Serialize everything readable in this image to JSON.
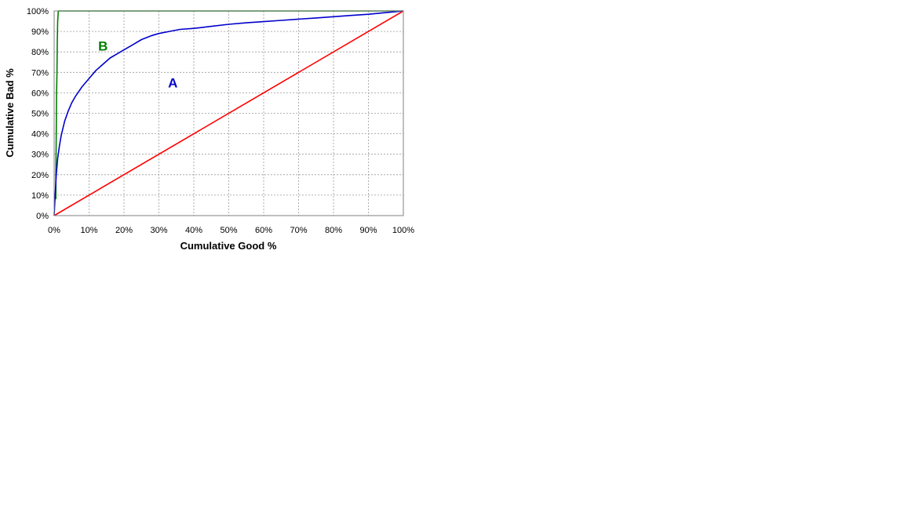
{
  "chart_data": {
    "type": "line",
    "xlabel": "Cumulative Good %",
    "ylabel": "Cumulative Bad %",
    "xlim": [
      0,
      100
    ],
    "ylim": [
      0,
      100
    ],
    "x_ticks": [
      "0%",
      "10%",
      "20%",
      "30%",
      "40%",
      "50%",
      "60%",
      "70%",
      "80%",
      "90%",
      "100%"
    ],
    "y_ticks": [
      "0%",
      "10%",
      "20%",
      "30%",
      "40%",
      "50%",
      "60%",
      "70%",
      "80%",
      "90%",
      "100%"
    ],
    "grid": true,
    "series": [
      {
        "color": "#008000",
        "x": [
          0.5,
          0.5,
          0.6,
          0.7,
          0.8,
          0.9,
          1.0,
          1.2,
          2,
          10,
          30,
          50,
          70,
          90,
          100
        ],
        "y": [
          8,
          20,
          40,
          60,
          70,
          85,
          95,
          100,
          100,
          100,
          100,
          100,
          100,
          100,
          100
        ]
      },
      {
        "color": "#0000cc",
        "x": [
          0,
          0.3,
          0.6,
          1,
          1.5,
          2,
          3,
          4,
          5,
          6,
          8,
          10,
          12,
          14,
          16,
          18,
          20,
          22,
          25,
          28,
          30,
          33,
          36,
          40,
          45,
          50,
          55,
          60,
          65,
          70,
          75,
          80,
          85,
          90,
          95,
          100
        ],
        "y": [
          0,
          10,
          20,
          28,
          34,
          39,
          46,
          51,
          55,
          58,
          63,
          67,
          71,
          74,
          77,
          79,
          81,
          83,
          86,
          88,
          89,
          90,
          91,
          91.5,
          92.5,
          93.5,
          94.2,
          94.8,
          95.4,
          96,
          96.6,
          97.2,
          97.8,
          98.4,
          99.2,
          100
        ]
      },
      {
        "color": "#ff0000",
        "x": [
          0,
          100
        ],
        "y": [
          0,
          100
        ]
      }
    ],
    "annotations": [
      {
        "text": "B",
        "x": 14,
        "y": 83,
        "color": "#008000"
      },
      {
        "text": "A",
        "x": 34,
        "y": 65,
        "color": "#0000cc"
      }
    ]
  }
}
